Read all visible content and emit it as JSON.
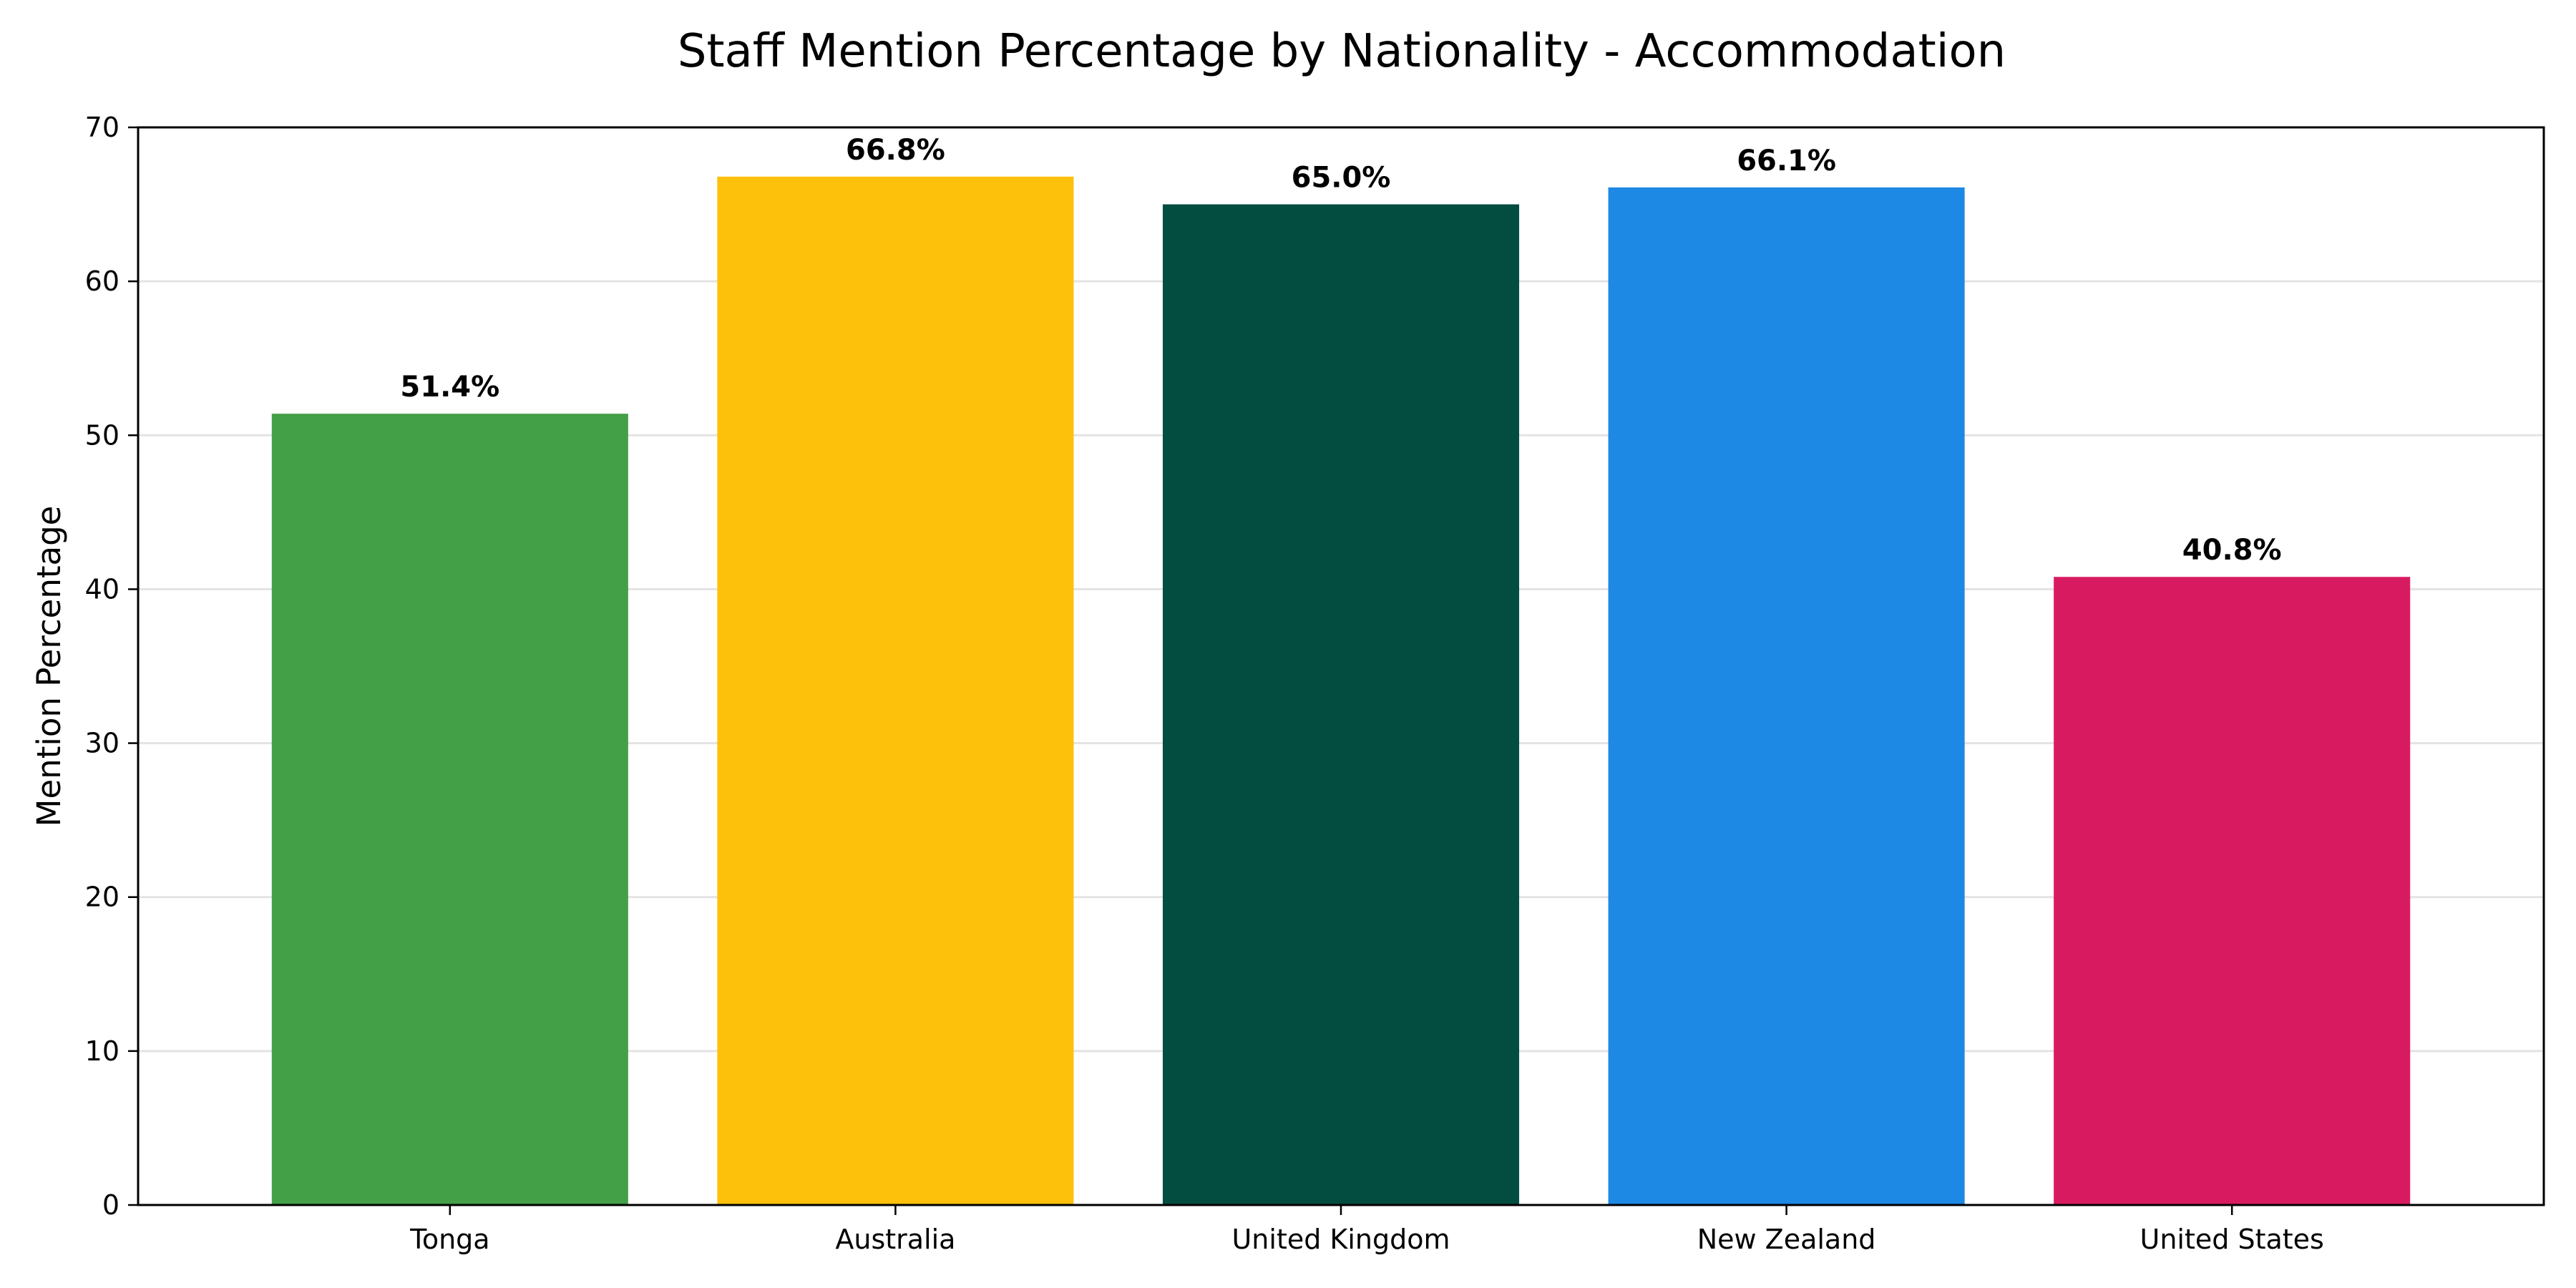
{
  "chart_data": {
    "type": "bar",
    "title": "Staff Mention Percentage by Nationality - Accommodation",
    "xlabel": "",
    "ylabel": "Mention Percentage",
    "categories": [
      "Tonga",
      "Australia",
      "United Kingdom",
      "New Zealand",
      "United States"
    ],
    "values": [
      51.4,
      66.8,
      65.0,
      66.1,
      40.8
    ],
    "data_labels": [
      "51.4%",
      "66.8%",
      "65.0%",
      "66.1%",
      "40.8%"
    ],
    "colors": [
      "#43a047",
      "#fdc10b",
      "#024d40",
      "#1e88e5",
      "#d81b60"
    ],
    "ylim": [
      0,
      70
    ],
    "yticks": [
      0,
      10,
      20,
      30,
      40,
      50,
      60,
      70
    ],
    "ytick_labels": [
      "0",
      "10",
      "20",
      "30",
      "40",
      "50",
      "60",
      "70"
    ],
    "grid": "horizontal",
    "legend": "none"
  }
}
